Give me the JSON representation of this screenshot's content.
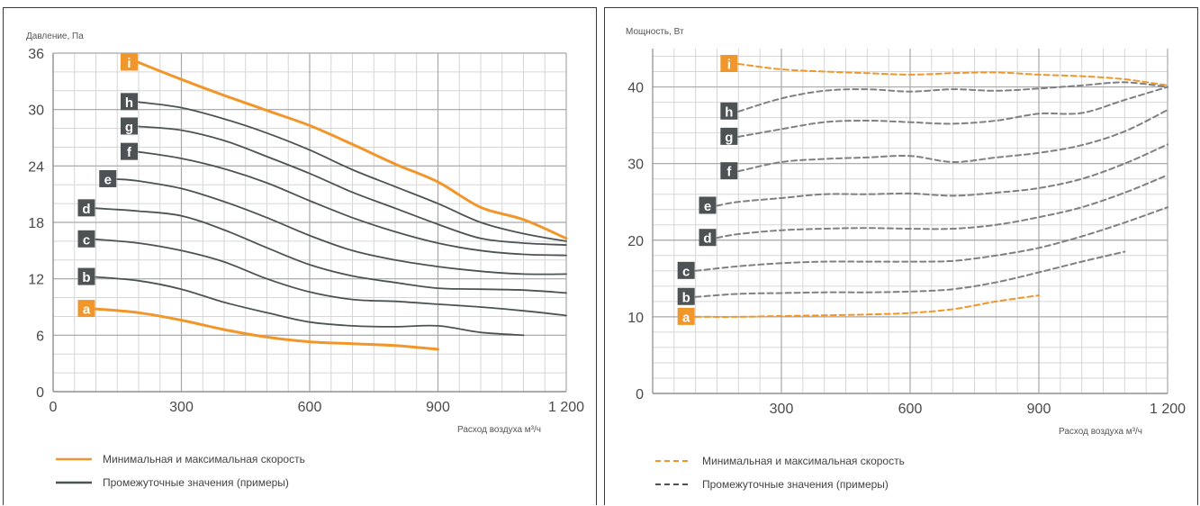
{
  "colors": {
    "orange": "#f0962a",
    "gray": "#4d5254",
    "dashed_gray": "#7d8184",
    "grid_major": "#a8a8a8",
    "grid_minor": "#d6d6d6"
  },
  "chart_data": [
    {
      "type": "line",
      "ylabel": "Давление, Па",
      "xlabel": "Расход воздуха м³/ч",
      "xlim": [
        0,
        1200
      ],
      "ylim": [
        0,
        36
      ],
      "xticks": [
        "0",
        "300",
        "600",
        "900",
        "1 200"
      ],
      "xtick_values": [
        0,
        300,
        600,
        900,
        1200
      ],
      "yticks": [
        "0",
        "6",
        "12",
        "18",
        "24",
        "30",
        "36"
      ],
      "ytick_values": [
        0,
        6,
        12,
        18,
        24,
        30,
        36
      ],
      "legend": [
        {
          "label": "Минимальная и максимальная скорость",
          "color": "orange",
          "style": "solid"
        },
        {
          "label": "Промежуточные значения (примеры)",
          "color": "gray",
          "style": "solid"
        }
      ],
      "series": [
        {
          "label": "i",
          "color": "orange",
          "x": [
            200,
            300,
            400,
            500,
            600,
            700,
            800,
            900,
            1000,
            1100,
            1200
          ],
          "y": [
            35,
            33.2,
            31.5,
            29.9,
            28.3,
            26.3,
            24.2,
            22.3,
            19.6,
            18.3,
            16.3
          ]
        },
        {
          "label": "h",
          "color": "gray",
          "x": [
            200,
            300,
            400,
            500,
            600,
            700,
            800,
            900,
            1000,
            1100,
            1200
          ],
          "y": [
            30.8,
            30.2,
            29,
            27.5,
            25.7,
            23.6,
            21.8,
            20,
            18,
            16.8,
            16
          ]
        },
        {
          "label": "g",
          "color": "gray",
          "x": [
            200,
            300,
            400,
            500,
            600,
            700,
            800,
            900,
            1000,
            1100,
            1200
          ],
          "y": [
            28.2,
            27.8,
            26.7,
            25,
            23.2,
            21.2,
            19.5,
            17.8,
            16.3,
            15.8,
            15.6
          ]
        },
        {
          "label": "f",
          "color": "gray",
          "x": [
            200,
            300,
            400,
            500,
            600,
            700,
            800,
            900,
            1000,
            1100,
            1200
          ],
          "y": [
            25.5,
            24.8,
            23.7,
            22.2,
            20.3,
            18.5,
            17,
            15.8,
            15,
            14.6,
            14.5
          ]
        },
        {
          "label": "e",
          "color": "gray",
          "x": [
            150,
            200,
            300,
            400,
            500,
            600,
            700,
            800,
            900,
            1000,
            1100,
            1200
          ],
          "y": [
            22.6,
            22.4,
            21.6,
            20.2,
            18.5,
            16.6,
            15,
            14,
            13.3,
            12.8,
            12.5,
            12.5
          ]
        },
        {
          "label": "d",
          "color": "gray",
          "x": [
            100,
            200,
            300,
            400,
            500,
            600,
            700,
            800,
            900,
            1000,
            1100,
            1200
          ],
          "y": [
            19.5,
            19.2,
            18.7,
            17.2,
            15.3,
            13.5,
            12.3,
            11.6,
            11,
            10.9,
            10.8,
            10.5
          ]
        },
        {
          "label": "c",
          "color": "gray",
          "x": [
            100,
            200,
            300,
            400,
            500,
            600,
            700,
            800,
            900,
            1000,
            1100,
            1200
          ],
          "y": [
            16.2,
            15.8,
            15,
            13.8,
            12,
            10.6,
            9.8,
            9.6,
            9.3,
            9,
            8.6,
            8.1
          ]
        },
        {
          "label": "b",
          "color": "gray",
          "x": [
            100,
            200,
            300,
            400,
            500,
            600,
            700,
            800,
            900,
            1000,
            1100
          ],
          "y": [
            12.2,
            11.8,
            10.9,
            9.5,
            8.4,
            7.4,
            7,
            6.9,
            7,
            6.3,
            6
          ]
        },
        {
          "label": "a",
          "color": "orange",
          "x": [
            100,
            200,
            300,
            400,
            500,
            600,
            700,
            800,
            900
          ],
          "y": [
            8.8,
            8.4,
            7.6,
            6.6,
            5.8,
            5.3,
            5.1,
            4.9,
            4.5
          ]
        }
      ]
    },
    {
      "type": "line",
      "ylabel": "Мощность, Вт",
      "xlabel": "Расход воздуха м³/ч",
      "xlim": [
        0,
        1200
      ],
      "ylim": [
        0,
        45
      ],
      "xticks": [
        "300",
        "600",
        "900",
        "1 200"
      ],
      "xtick_values": [
        300,
        600,
        900,
        1200
      ],
      "yticks": [
        "0",
        "10",
        "20",
        "30",
        "40"
      ],
      "ytick_values": [
        0,
        10,
        20,
        30,
        40
      ],
      "legend": [
        {
          "label": "Минимальная и максимальная скорость",
          "color": "orange",
          "style": "dashed"
        },
        {
          "label": "Промежуточные значения (примеры)",
          "color": "gray",
          "style": "dashed"
        }
      ],
      "series": [
        {
          "label": "i",
          "color": "orange",
          "x": [
            200,
            300,
            400,
            500,
            600,
            700,
            800,
            900,
            1000,
            1100,
            1200
          ],
          "y": [
            43,
            42.3,
            42,
            41.8,
            41.6,
            41.8,
            41.9,
            41.6,
            41.4,
            41,
            40.2
          ]
        },
        {
          "label": "h",
          "color": "gray",
          "x": [
            200,
            300,
            400,
            500,
            600,
            700,
            800,
            900,
            1000,
            1100,
            1200
          ],
          "y": [
            36.8,
            38.5,
            39.5,
            39.7,
            39.4,
            39.7,
            39.5,
            39.8,
            40.2,
            40.6,
            40
          ]
        },
        {
          "label": "g",
          "color": "gray",
          "x": [
            200,
            300,
            400,
            500,
            600,
            700,
            800,
            900,
            1000,
            1100,
            1200
          ],
          "y": [
            33.5,
            34.5,
            35.4,
            35.6,
            35.4,
            35.2,
            35.6,
            36.5,
            36.6,
            38.3,
            40
          ]
        },
        {
          "label": "f",
          "color": "gray",
          "x": [
            200,
            300,
            400,
            500,
            600,
            700,
            800,
            900,
            1000,
            1100,
            1200
          ],
          "y": [
            29,
            30.2,
            30.6,
            30.8,
            31,
            30.2,
            30.8,
            31.4,
            32.4,
            34.2,
            37
          ]
        },
        {
          "label": "e",
          "color": "gray",
          "x": [
            150,
            200,
            300,
            400,
            500,
            600,
            700,
            800,
            900,
            1000,
            1100,
            1200
          ],
          "y": [
            24.5,
            25,
            25.5,
            26,
            26,
            26.1,
            25.8,
            26.2,
            26.8,
            28,
            30,
            32.5
          ]
        },
        {
          "label": "d",
          "color": "gray",
          "x": [
            150,
            200,
            300,
            400,
            500,
            600,
            700,
            800,
            900,
            1000,
            1100,
            1200
          ],
          "y": [
            20.3,
            20.8,
            21.3,
            21.5,
            21.6,
            21.5,
            21.5,
            22,
            23,
            24.3,
            26.2,
            28.5
          ]
        },
        {
          "label": "c",
          "color": "gray",
          "x": [
            100,
            200,
            300,
            400,
            500,
            600,
            700,
            800,
            900,
            1000,
            1100,
            1200
          ],
          "y": [
            16,
            16.6,
            17,
            17.2,
            17.2,
            17.2,
            17.3,
            18,
            19,
            20.5,
            22.3,
            24.3
          ]
        },
        {
          "label": "b",
          "color": "gray",
          "x": [
            100,
            200,
            300,
            400,
            500,
            600,
            700,
            800,
            900,
            1000,
            1100
          ],
          "y": [
            12.6,
            13,
            13.1,
            13.2,
            13.2,
            13.3,
            13.6,
            14.5,
            15.8,
            17.2,
            18.5
          ]
        },
        {
          "label": "a",
          "color": "orange",
          "x": [
            100,
            200,
            300,
            400,
            500,
            600,
            700,
            800,
            900
          ],
          "y": [
            10,
            10,
            10.1,
            10.2,
            10.3,
            10.5,
            11,
            12,
            12.8
          ]
        }
      ]
    }
  ]
}
